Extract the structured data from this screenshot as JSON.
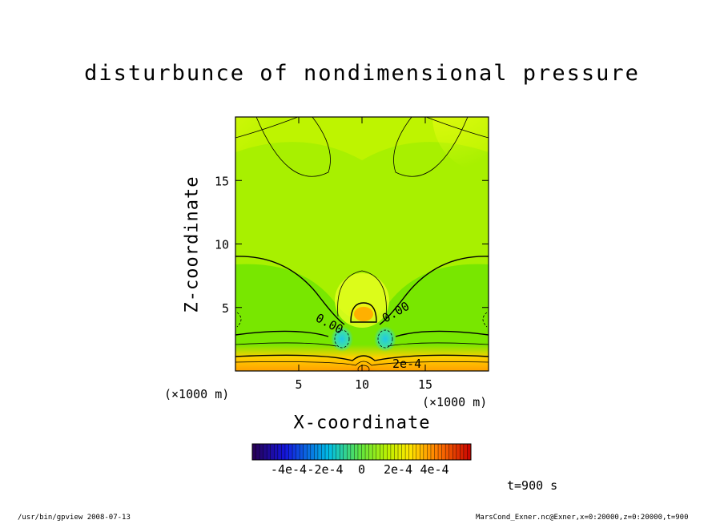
{
  "chart_data": {
    "type": "heatmap",
    "title": "disturbunce of nondimensional pressure",
    "xlabel": "X-coordinate",
    "ylabel": "Z-coordinate",
    "x_unit": "(×1000 m)",
    "y_unit": "(×1000 m)",
    "xlim": [
      0,
      20
    ],
    "ylim": [
      0,
      20
    ],
    "x_ticks": [
      5,
      10,
      15
    ],
    "y_ticks": [
      5,
      10,
      15
    ],
    "contour_labels": [
      "0.00",
      "0.00",
      "2e-4"
    ],
    "colorbar": {
      "range": [
        -0.0006,
        0.0006
      ],
      "ticks": [
        {
          "value": -0.0004,
          "label": "-4e-4"
        },
        {
          "value": -0.0002,
          "label": "-2e-4"
        },
        {
          "value": 0,
          "label": "0"
        },
        {
          "value": 0.0002,
          "label": "2e-4"
        },
        {
          "value": 0.0004,
          "label": "4e-4"
        }
      ]
    },
    "time_label": "t=900 s"
  },
  "footer": {
    "left": "/usr/bin/gpview   2008-07-13",
    "right": "MarsCond_Exner.nc@Exner,x=0:20000,z=0:20000,t=900"
  }
}
